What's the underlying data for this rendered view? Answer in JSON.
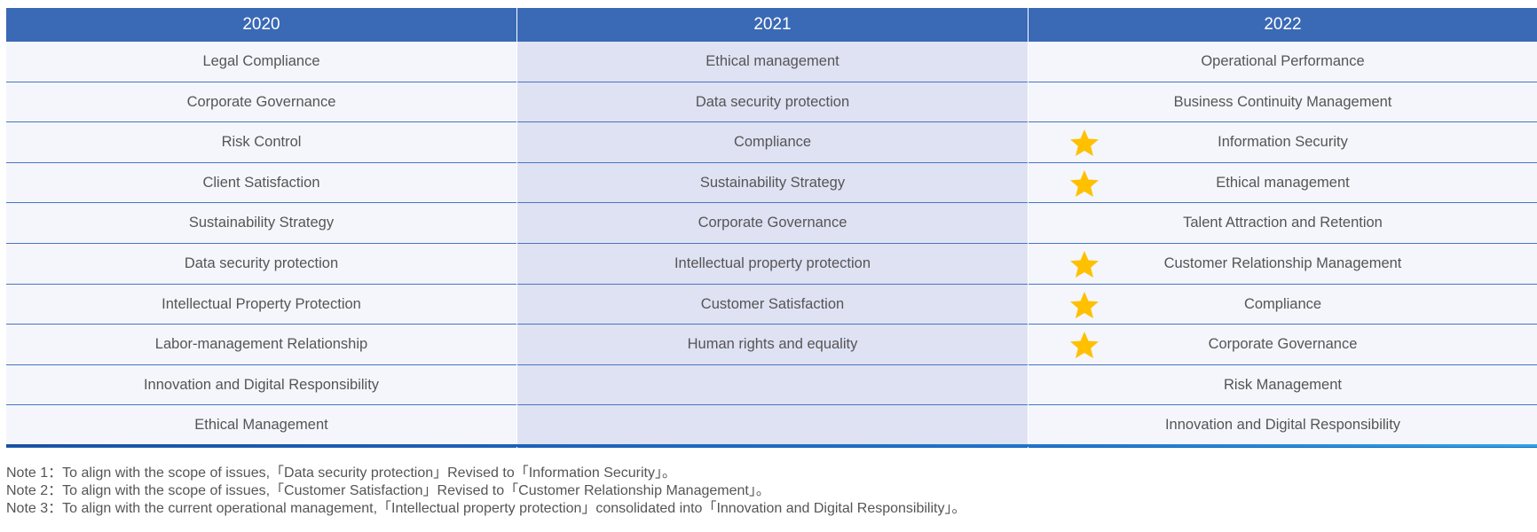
{
  "table": {
    "columns": [
      {
        "header": "2020",
        "items": [
          "Legal Compliance",
          "Corporate Governance",
          "Risk Control",
          "Client Satisfaction",
          "Sustainability Strategy",
          "Data security protection",
          "Intellectual Property Protection",
          "Labor-management Relationship",
          "Innovation and Digital Responsibility",
          "Ethical Management"
        ]
      },
      {
        "header": "2021",
        "items": [
          "Ethical management",
          "Data security protection",
          "Compliance",
          "Sustainability Strategy",
          "Corporate Governance",
          "Intellectual property protection",
          "Customer Satisfaction",
          "Human rights and equality"
        ]
      },
      {
        "header": "2022",
        "items": [
          "Operational Performance",
          "Business Continuity Management",
          "Information Security",
          "Ethical management",
          "Talent Attraction and Retention",
          "Customer Relationship Management",
          "Compliance",
          "Corporate Governance",
          "Risk Management",
          "Innovation and Digital Responsibility"
        ]
      }
    ]
  },
  "notes": [
    "Note 1：To align with the scope of issues,「Data security protection」Revised to「Information Security」。",
    "Note 2：To align with the scope of issues,「Customer Satisfaction」Revised to「Customer Relationship Management」。",
    "Note 3：To align with the current operational management,「Intellectual property protection」consolidated into「Innovation and Digital Responsibility」。"
  ]
}
